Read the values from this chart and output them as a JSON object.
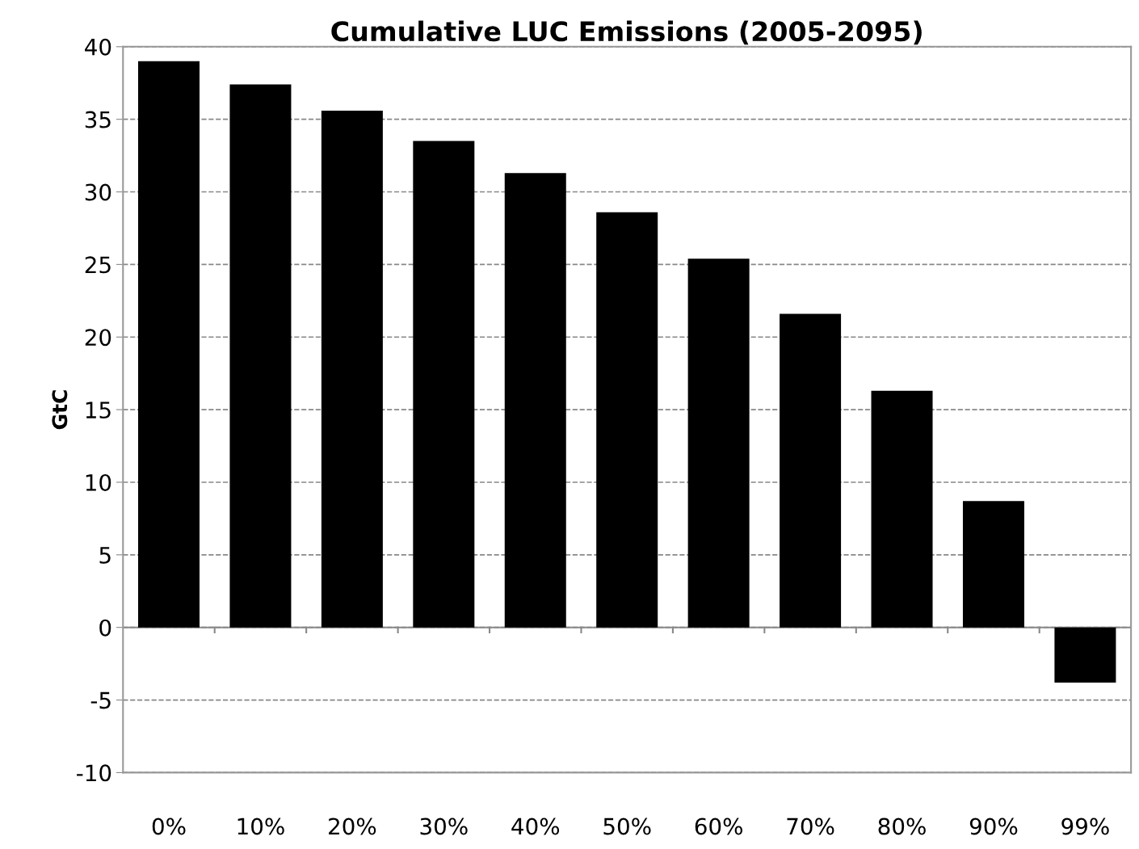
{
  "chart_data": {
    "type": "bar",
    "title": "Cumulative LUC Emissions (2005-2095)",
    "ylabel": "GtC",
    "categories": [
      "0%",
      "10%",
      "20%",
      "30%",
      "40%",
      "50%",
      "60%",
      "70%",
      "80%",
      "90%",
      "99%"
    ],
    "values": [
      39,
      37.4,
      35.6,
      33.5,
      31.3,
      28.6,
      25.4,
      21.6,
      16.3,
      8.7,
      -3.8
    ],
    "color": "#000000",
    "ylim": [
      -10,
      40
    ],
    "yticks": [
      -10,
      -5,
      0,
      5,
      10,
      15,
      20,
      25,
      30,
      35,
      40
    ],
    "grid": "y",
    "legend": false
  }
}
